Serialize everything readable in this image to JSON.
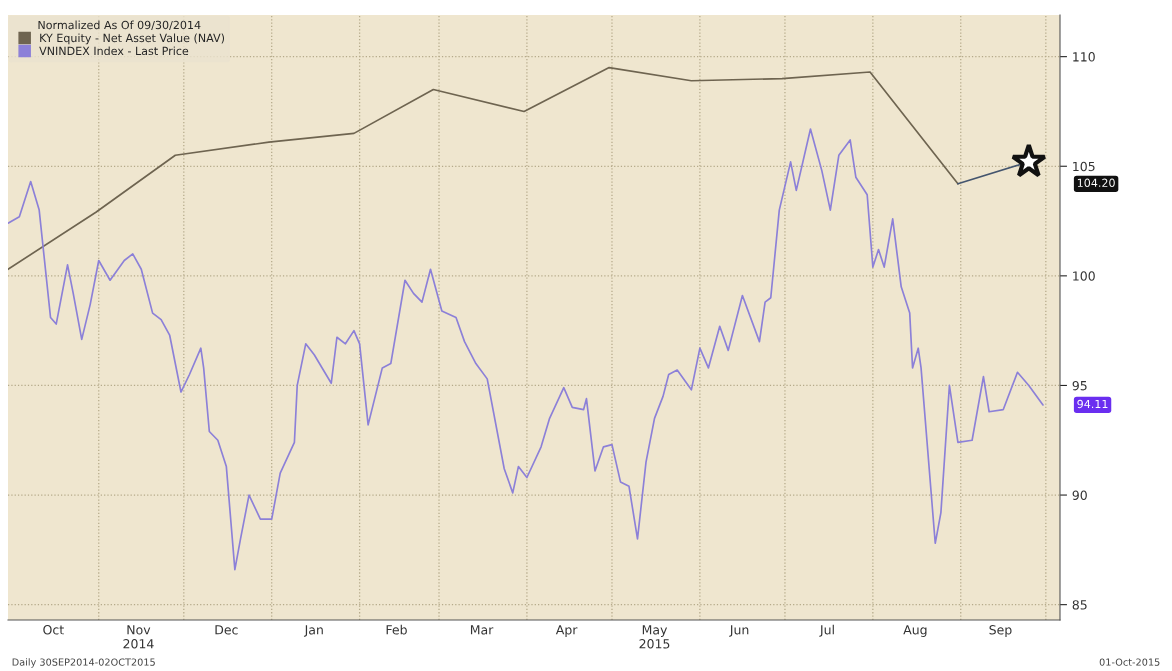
{
  "chart_data": {
    "type": "line",
    "legend_title": "Normalized As Of 09/30/2014",
    "xlim": [
      "2014-09-30",
      "2015-10-06"
    ],
    "xticks": [
      {
        "value": "2014-10-16",
        "label": "Oct"
      },
      {
        "value": "2014-11-15",
        "label": "Nov\n2014"
      },
      {
        "value": "2014-12-16",
        "label": "Dec"
      },
      {
        "value": "2015-01-16",
        "label": "Jan"
      },
      {
        "value": "2015-02-14",
        "label": "Feb"
      },
      {
        "value": "2015-03-16",
        "label": "Mar"
      },
      {
        "value": "2015-04-15",
        "label": "Apr"
      },
      {
        "value": "2015-05-16",
        "label": "May\n2015"
      },
      {
        "value": "2015-06-15",
        "label": "Jun"
      },
      {
        "value": "2015-07-16",
        "label": "Jul"
      },
      {
        "value": "2015-08-16",
        "label": "Aug"
      },
      {
        "value": "2015-09-15",
        "label": "Sep"
      },
      {
        "value": "2014-11-01",
        "label": null
      },
      {
        "value": "2014-12-01",
        "label": null
      },
      {
        "value": "2015-01-01",
        "label": null
      },
      {
        "value": "2015-02-01",
        "label": null
      },
      {
        "value": "2015-03-01",
        "label": null
      },
      {
        "value": "2015-04-01",
        "label": null
      },
      {
        "value": "2015-05-01",
        "label": null
      },
      {
        "value": "2015-06-01",
        "label": null
      },
      {
        "value": "2015-07-01",
        "label": null
      },
      {
        "value": "2015-08-01",
        "label": null
      },
      {
        "value": "2015-09-01",
        "label": null
      },
      {
        "value": "2015-10-01",
        "label": null
      }
    ],
    "ylim": [
      84.3,
      111.9
    ],
    "yticks": [
      85,
      90,
      95,
      100,
      105,
      110
    ],
    "grid": true,
    "legend": "top left",
    "series": [
      {
        "name": "KY Equity - Net Asset Value (NAV)",
        "color": "#6e6450",
        "x": [
          "2014-09-30",
          "2014-10-31",
          "2014-11-28",
          "2014-12-31",
          "2015-01-30",
          "2015-02-27",
          "2015-03-31",
          "2015-04-30",
          "2015-05-29",
          "2015-06-30",
          "2015-07-31",
          "2015-08-31"
        ],
        "values": [
          100.3,
          102.9,
          105.5,
          106.1,
          106.5,
          108.5,
          107.5,
          109.5,
          108.9,
          109.0,
          109.3,
          104.2
        ]
      },
      {
        "name": "VNINDEX Index - Last Price",
        "color": "#8c80d8",
        "x": [
          "2014-09-30",
          "2014-10-04",
          "2014-10-08",
          "2014-10-11",
          "2014-10-15",
          "2014-10-17",
          "2014-10-21",
          "2014-10-23",
          "2014-10-26",
          "2014-10-29",
          "2014-11-01",
          "2014-11-05",
          "2014-11-10",
          "2014-11-13",
          "2014-11-16",
          "2014-11-20",
          "2014-11-23",
          "2014-11-26",
          "2014-11-30",
          "2014-12-03",
          "2014-12-07",
          "2014-12-08",
          "2014-12-10",
          "2014-12-13",
          "2014-12-16",
          "2014-12-19",
          "2014-12-21",
          "2014-12-24",
          "2014-12-28",
          "2015-01-01",
          "2015-01-04",
          "2015-01-09",
          "2015-01-10",
          "2015-01-13",
          "2015-01-16",
          "2015-01-22",
          "2015-01-24",
          "2015-01-27",
          "2015-01-30",
          "2015-02-01",
          "2015-02-04",
          "2015-02-09",
          "2015-02-12",
          "2015-02-17",
          "2015-02-20",
          "2015-02-23",
          "2015-02-26",
          "2015-03-02",
          "2015-03-07",
          "2015-03-10",
          "2015-03-14",
          "2015-03-18",
          "2015-03-24",
          "2015-03-27",
          "2015-03-29",
          "2015-04-01",
          "2015-04-06",
          "2015-04-09",
          "2015-04-14",
          "2015-04-17",
          "2015-04-21",
          "2015-04-22",
          "2015-04-25",
          "2015-04-28",
          "2015-05-01",
          "2015-05-04",
          "2015-05-07",
          "2015-05-10",
          "2015-05-13",
          "2015-05-16",
          "2015-05-19",
          "2015-05-21",
          "2015-05-24",
          "2015-05-29",
          "2015-06-01",
          "2015-06-04",
          "2015-06-08",
          "2015-06-11",
          "2015-06-16",
          "2015-06-22",
          "2015-06-24",
          "2015-06-26",
          "2015-06-29",
          "2015-07-03",
          "2015-07-05",
          "2015-07-10",
          "2015-07-14",
          "2015-07-17",
          "2015-07-20",
          "2015-07-24",
          "2015-07-26",
          "2015-07-30",
          "2015-08-01",
          "2015-08-03",
          "2015-08-05",
          "2015-08-08",
          "2015-08-11",
          "2015-08-14",
          "2015-08-15",
          "2015-08-17",
          "2015-08-18",
          "2015-08-23",
          "2015-08-25",
          "2015-08-28",
          "2015-08-31",
          "2015-09-05",
          "2015-09-09",
          "2015-09-11",
          "2015-09-16",
          "2015-09-21",
          "2015-09-25",
          "2015-09-30"
        ],
        "values": [
          102.4,
          102.7,
          104.3,
          103.0,
          98.1,
          97.8,
          100.5,
          99.2,
          97.1,
          98.7,
          100.7,
          99.8,
          100.7,
          101.0,
          100.3,
          98.3,
          98.0,
          97.3,
          94.7,
          95.5,
          96.7,
          95.8,
          92.9,
          92.5,
          91.3,
          86.6,
          88.0,
          90.0,
          88.9,
          88.9,
          91.0,
          92.4,
          95.0,
          96.9,
          96.4,
          95.1,
          97.2,
          96.9,
          97.5,
          96.9,
          93.2,
          95.8,
          96.0,
          99.8,
          99.2,
          98.8,
          100.3,
          98.4,
          98.1,
          97.0,
          96.0,
          95.3,
          91.2,
          90.1,
          91.3,
          90.8,
          92.2,
          93.5,
          94.9,
          94.0,
          93.9,
          94.4,
          91.1,
          92.2,
          92.3,
          90.6,
          90.4,
          88.0,
          91.5,
          93.5,
          94.5,
          95.5,
          95.7,
          94.8,
          96.7,
          95.8,
          97.7,
          96.6,
          99.1,
          97.0,
          98.8,
          99.0,
          103.0,
          105.2,
          103.9,
          106.7,
          104.8,
          103.0,
          105.5,
          106.2,
          104.5,
          103.7,
          100.4,
          101.2,
          100.4,
          102.6,
          99.5,
          98.3,
          95.8,
          96.7,
          95.8,
          87.8,
          89.2,
          95.0,
          92.4,
          92.5,
          95.4,
          93.8,
          93.9,
          95.6,
          95.0,
          94.11
        ]
      },
      {
        "color": "#44556e",
        "marker": "star",
        "x": [
          "2015-08-31",
          "2015-09-25"
        ],
        "values": [
          104.2,
          105.2
        ]
      }
    ],
    "annotations": [
      "104.20",
      "94.11",
      "Daily 30SEP2014-02OCT2015",
      "01-Oct-2015"
    ]
  }
}
